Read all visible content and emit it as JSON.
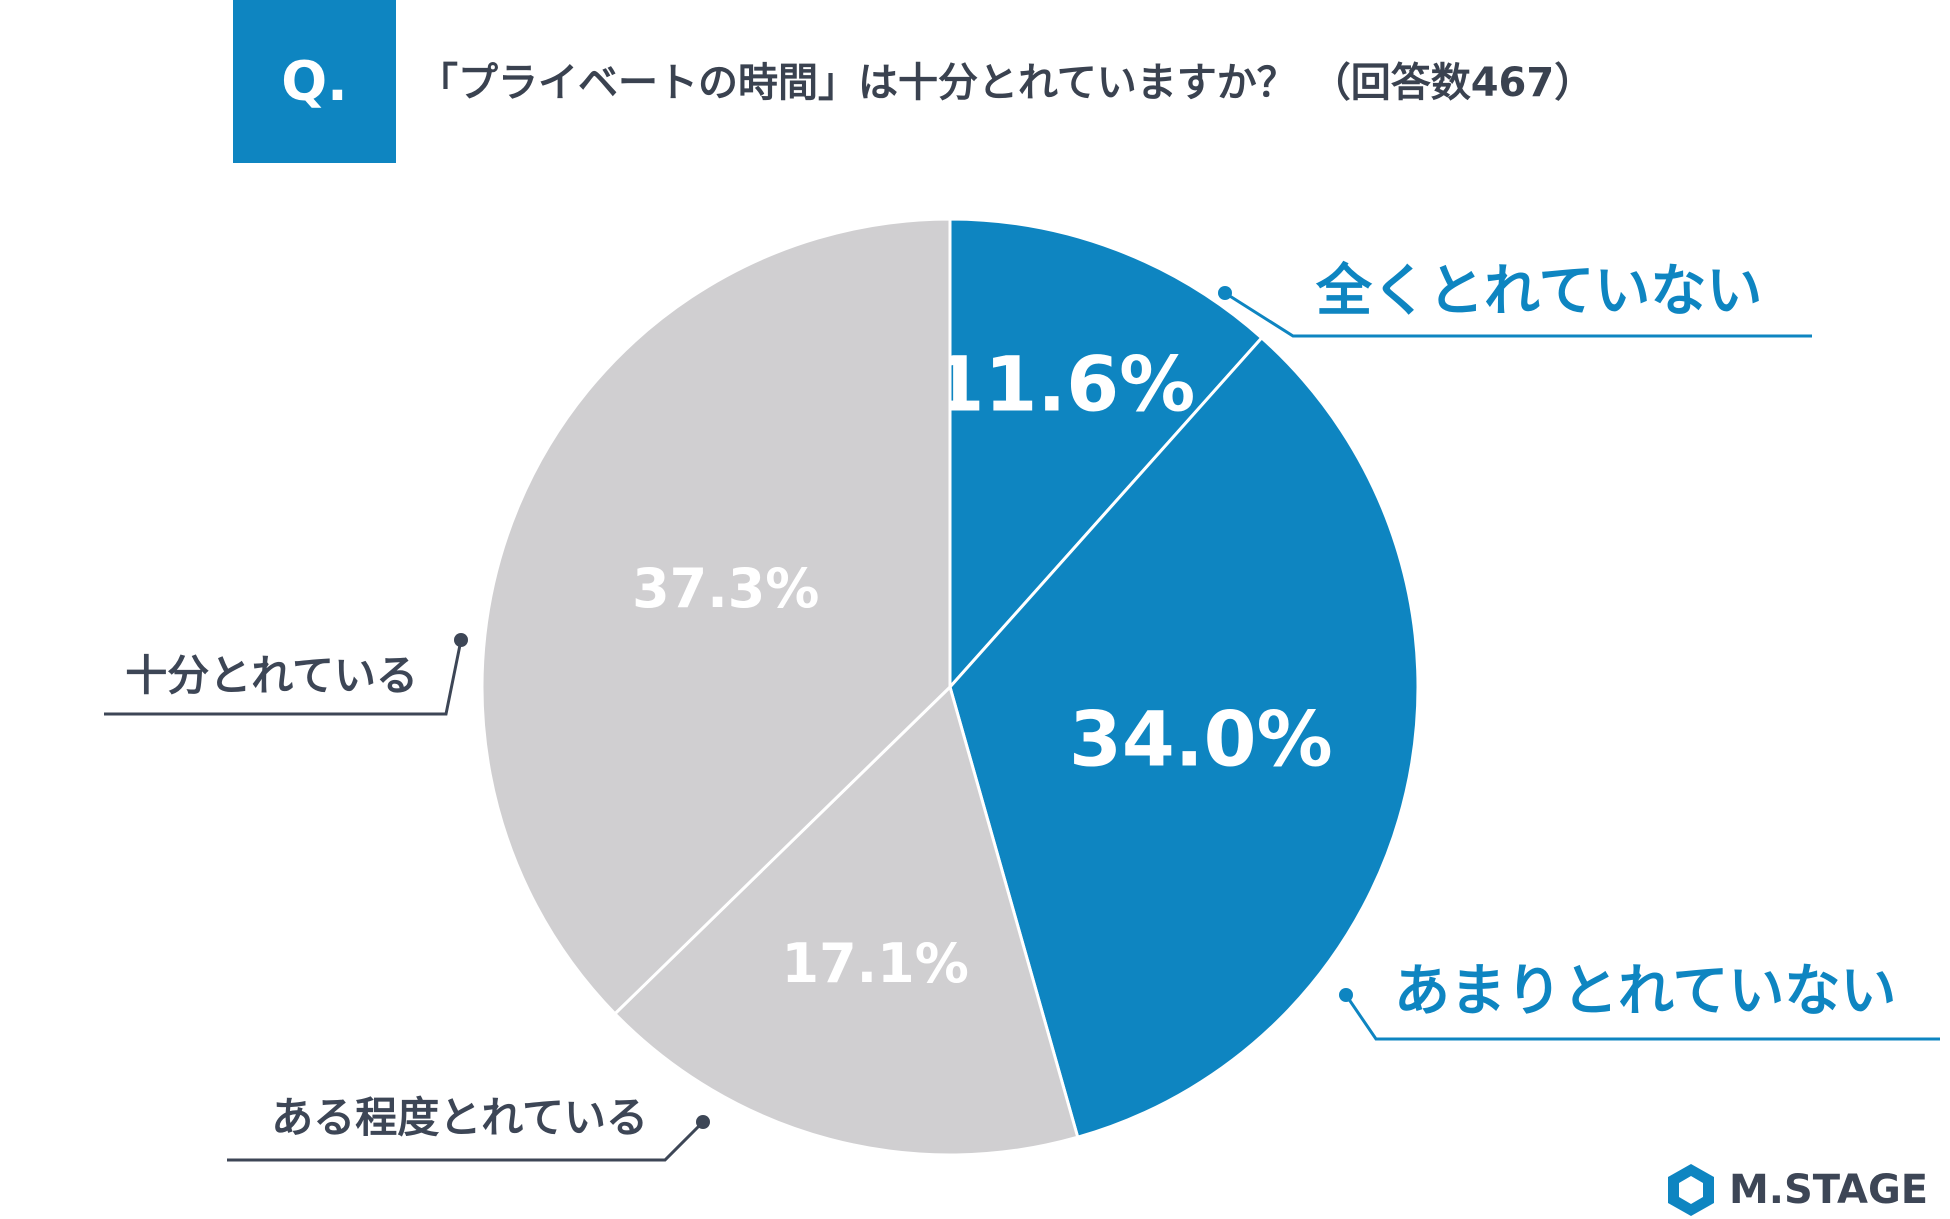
{
  "header": {
    "badge": "Q.",
    "title": "「プライベートの時間」は十分とれていますか？ （回答数467）"
  },
  "chart_data": {
    "type": "pie",
    "categories": [
      "全くとれていない",
      "あまりとれていない",
      "ある程度とれている",
      "十分とれている"
    ],
    "values": [
      11.6,
      34.0,
      17.1,
      37.3
    ],
    "value_labels": [
      "11.6%",
      "34.0%",
      "17.1%",
      "37.3%"
    ],
    "colors": [
      "#0e85c1",
      "#0e85c1",
      "#d0cfd1",
      "#d0cfd1"
    ],
    "label_colors": [
      "#0e85c1",
      "#0e85c1",
      "#3d4656",
      "#3d4656"
    ],
    "start": "12 o'clock",
    "direction": "clockwise"
  },
  "logo": {
    "text": "M.STAGE",
    "icon": "m-stage-hexagon-icon"
  }
}
